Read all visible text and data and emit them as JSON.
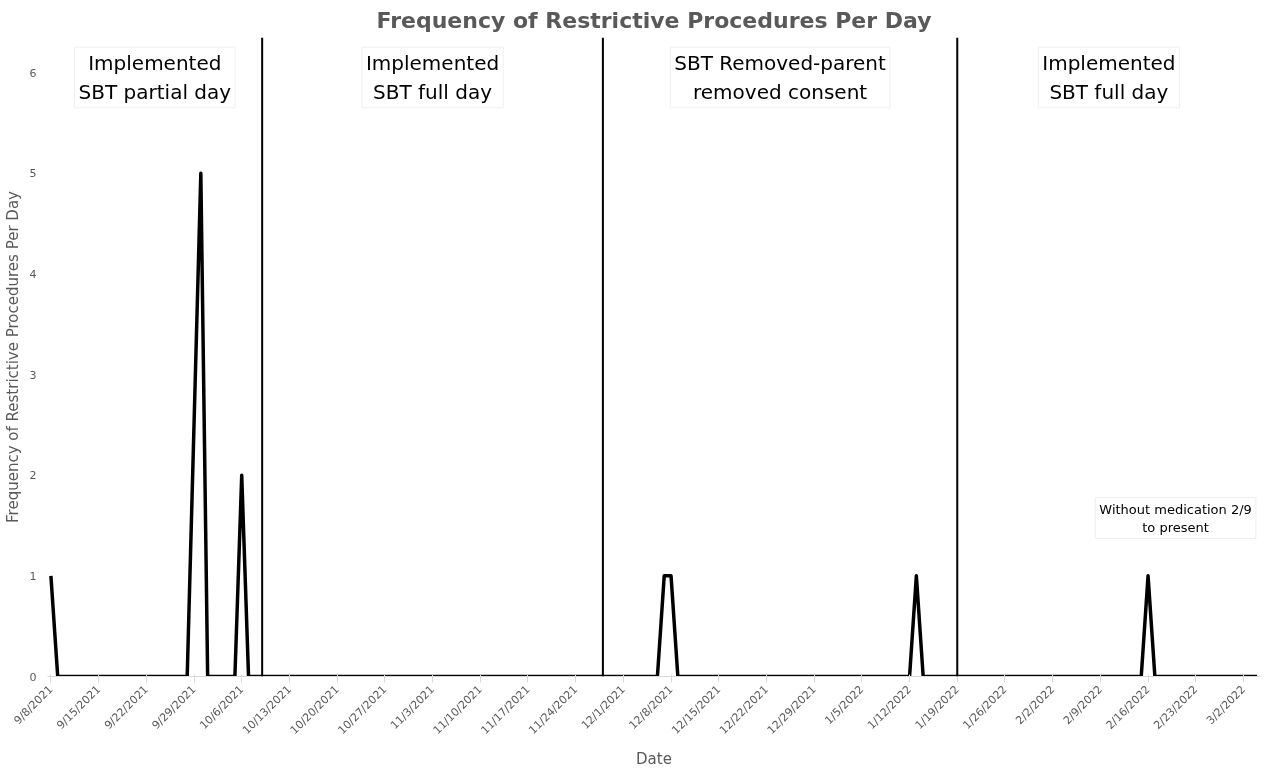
{
  "chart_data": {
    "type": "line",
    "title": "Frequency of Restrictive Procedures Per Day",
    "xlabel": "Date",
    "ylabel": "Frequency of Restrictive Procedures Per Day",
    "x": [
      "2021-09-08",
      "2021-09-09",
      "2021-09-28",
      "2021-09-30",
      "2021-10-01",
      "2021-10-05",
      "2021-10-06",
      "2021-10-07",
      "2021-12-06",
      "2021-12-07",
      "2021-12-08",
      "2021-12-09",
      "2022-01-12",
      "2022-01-13",
      "2022-01-14",
      "2022-02-15",
      "2022-02-16",
      "2022-02-17",
      "2022-03-04"
    ],
    "series": [
      {
        "color": "#000000",
        "values": [
          1,
          0,
          0,
          5,
          0,
          0,
          2,
          0,
          0,
          1,
          1,
          0,
          0,
          1,
          0,
          0,
          1,
          0,
          0
        ]
      }
    ],
    "xlim": [
      "2021-09-07T12:00",
      "2022-03-04T12:00"
    ],
    "xticks": [
      {
        "value": "2021-09-08",
        "label": "9/8/2021"
      },
      {
        "value": "2021-09-15",
        "label": "9/15/2021"
      },
      {
        "value": "2021-09-22",
        "label": "9/22/2021"
      },
      {
        "value": "2021-09-29",
        "label": "9/29/2021"
      },
      {
        "value": "2021-10-06",
        "label": "10/6/2021"
      },
      {
        "value": "2021-10-13",
        "label": "10/13/2021"
      },
      {
        "value": "2021-10-20",
        "label": "10/20/2021"
      },
      {
        "value": "2021-10-27",
        "label": "10/27/2021"
      },
      {
        "value": "2021-11-03",
        "label": "11/3/2021"
      },
      {
        "value": "2021-11-10",
        "label": "11/10/2021"
      },
      {
        "value": "2021-11-17",
        "label": "11/17/2021"
      },
      {
        "value": "2021-11-24",
        "label": "11/24/2021"
      },
      {
        "value": "2021-12-01",
        "label": "12/1/2021"
      },
      {
        "value": "2021-12-08",
        "label": "12/8/2021"
      },
      {
        "value": "2021-12-15",
        "label": "12/15/2021"
      },
      {
        "value": "2021-12-22",
        "label": "12/22/2021"
      },
      {
        "value": "2021-12-29",
        "label": "12/29/2021"
      },
      {
        "value": "2022-01-05",
        "label": "1/5/2022"
      },
      {
        "value": "2022-01-12",
        "label": "1/12/2022"
      },
      {
        "value": "2022-01-19",
        "label": "1/19/2022"
      },
      {
        "value": "2022-01-26",
        "label": "1/26/2022"
      },
      {
        "value": "2022-02-02",
        "label": "2/2/2022"
      },
      {
        "value": "2022-02-09",
        "label": "2/9/2022"
      },
      {
        "value": "2022-02-16",
        "label": "2/16/2022"
      },
      {
        "value": "2022-02-23",
        "label": "2/23/2022"
      },
      {
        "value": "2022-03-02",
        "label": "3/2/2022"
      }
    ],
    "ylim": [
      0,
      6.35
    ],
    "yticks": [
      0,
      1,
      2,
      3,
      4,
      5,
      6
    ],
    "grid": false,
    "marker": "none",
    "line_style": "solid",
    "ref_lines": [
      {
        "axis": "x",
        "value": "2021-10-09",
        "color": "#000000"
      },
      {
        "axis": "x",
        "value": "2021-11-28",
        "color": "#000000"
      },
      {
        "axis": "x",
        "value": "2022-01-19",
        "color": "#000000"
      }
    ],
    "annotations": [
      "Implemented\nSBT partial day",
      "Implemented\nSBT full day",
      "SBT Removed-parent\nremoved consent",
      "Implemented\nSBT full day",
      "Without medication 2/9\nto present"
    ]
  }
}
